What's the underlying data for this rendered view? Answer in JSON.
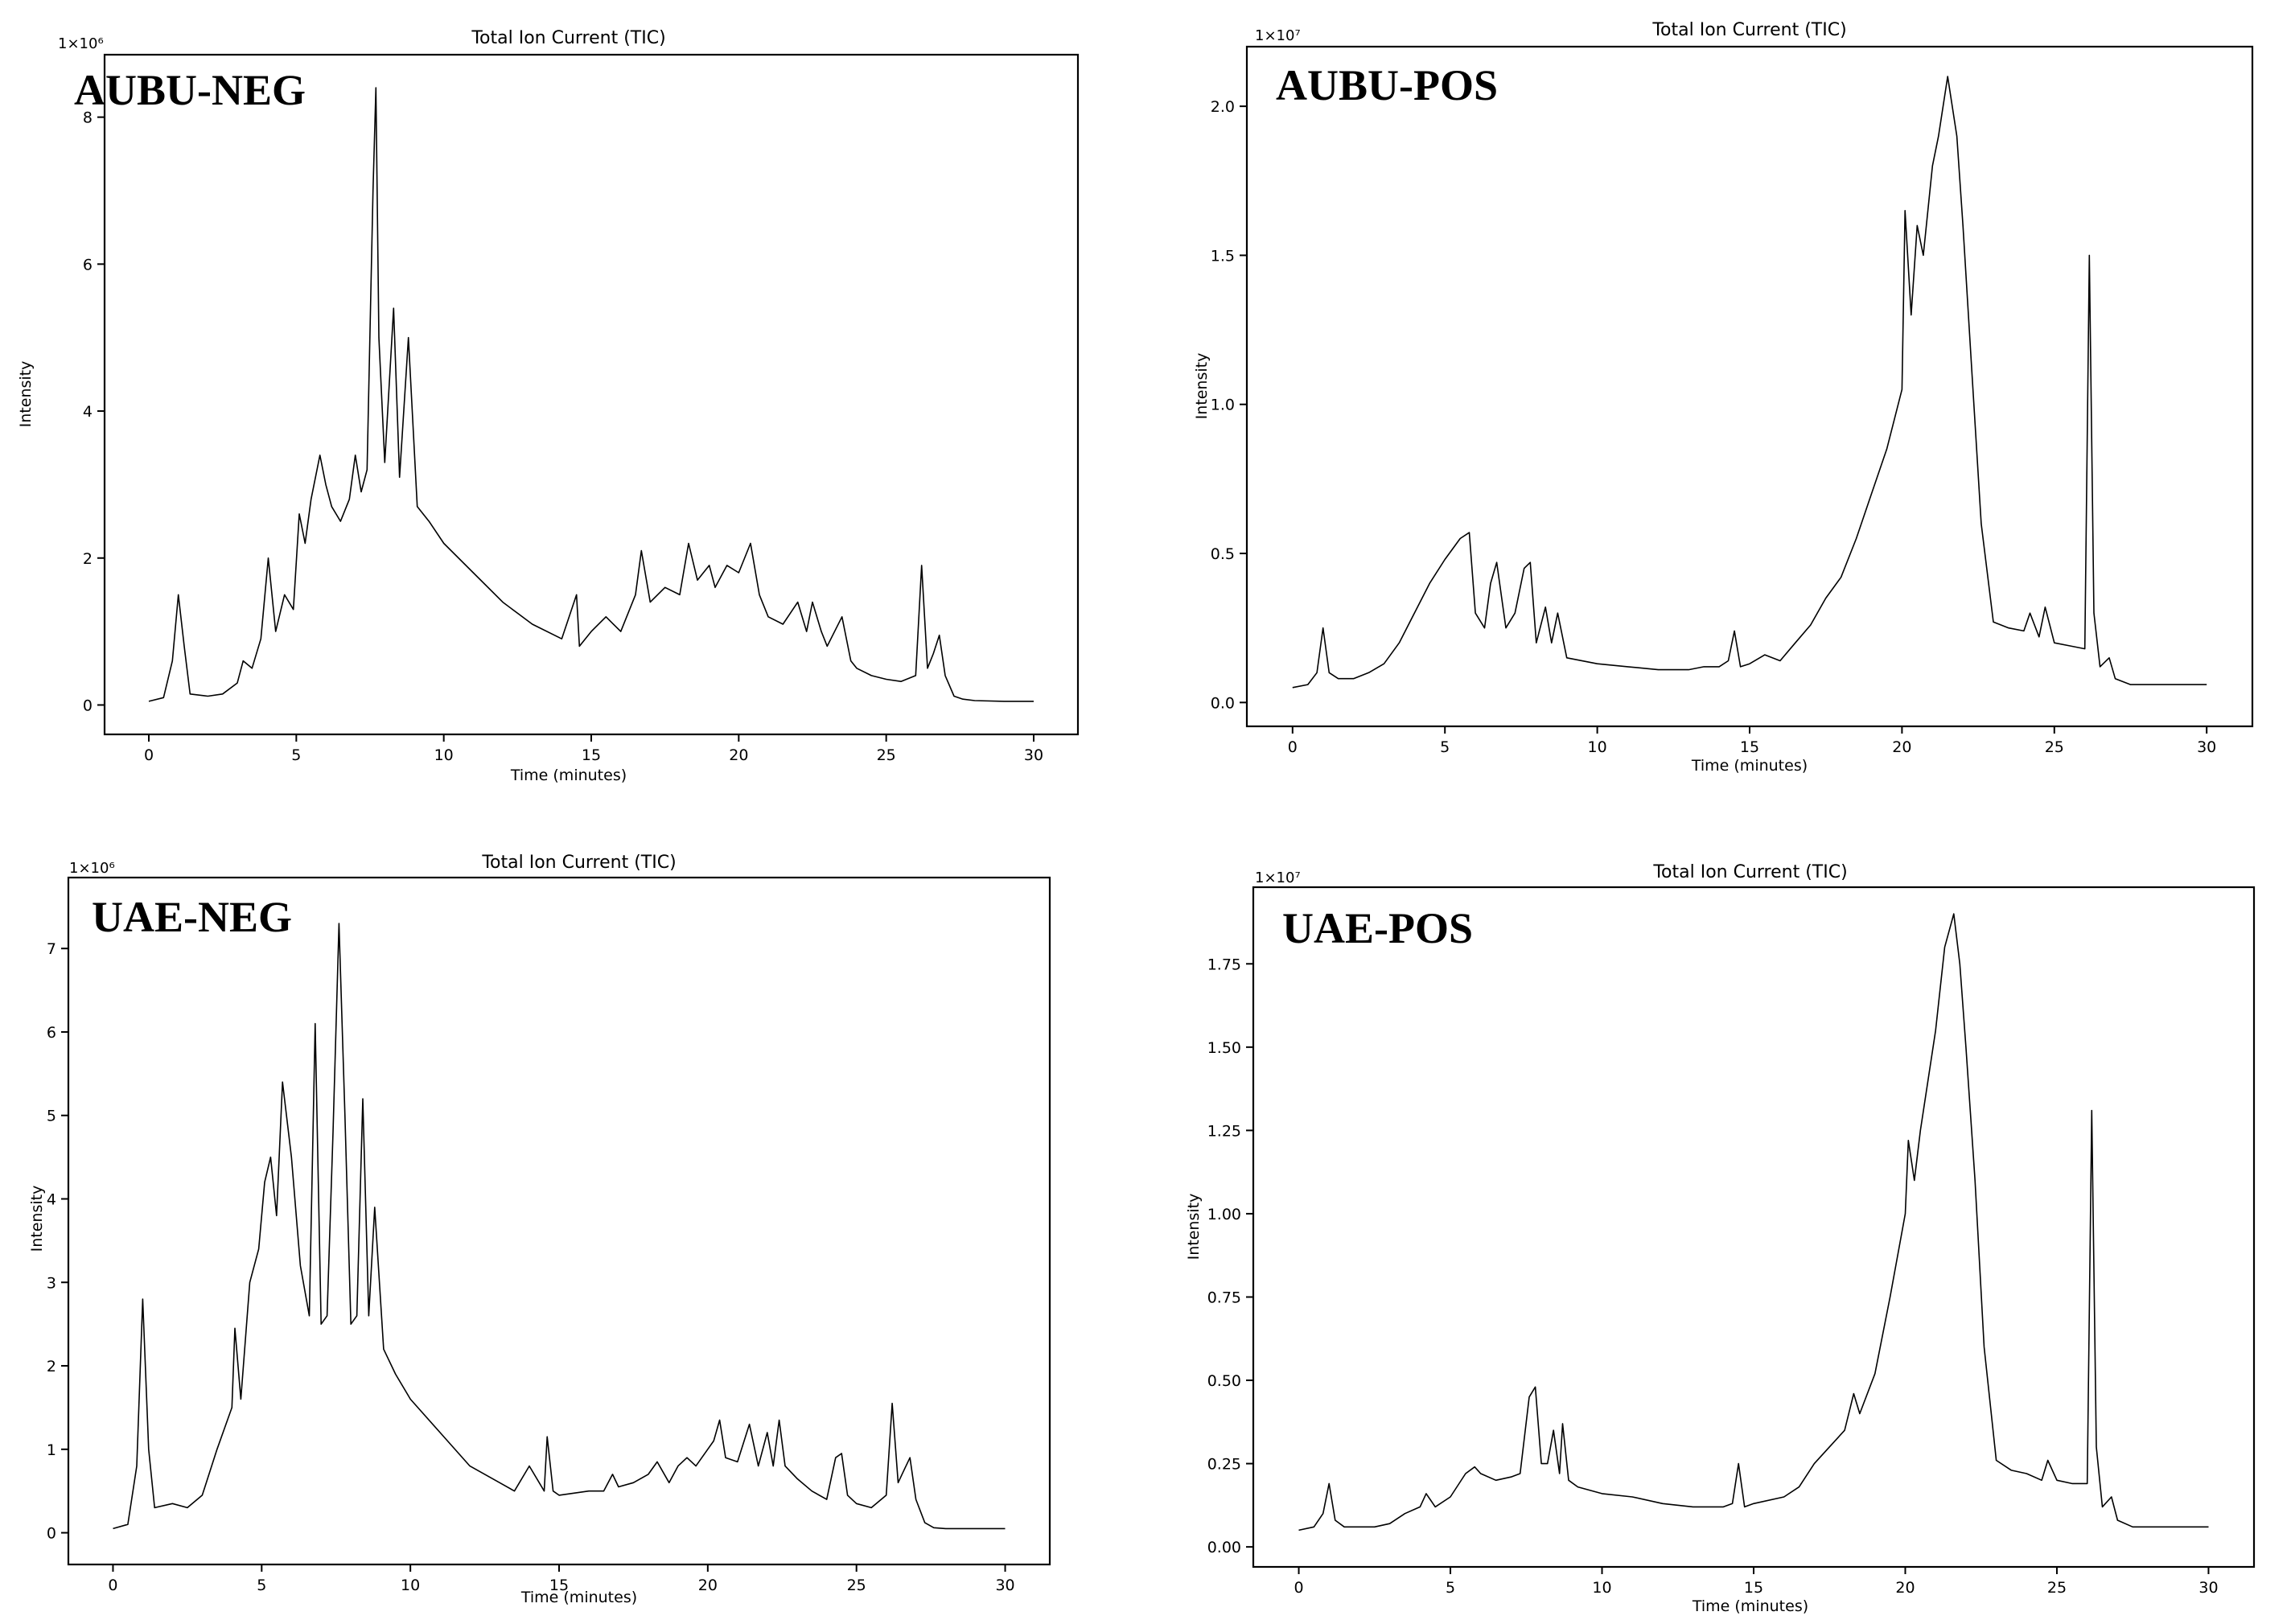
{
  "chart_data": [
    {
      "type": "line",
      "panel_label": "AUBU-NEG",
      "title": "Total Ion Current (TIC)",
      "xlabel": "Time (minutes)",
      "ylabel": "Intensity",
      "y_multiplier": "1×10⁶",
      "xlim": [
        -1.5,
        31.5
      ],
      "ylim": [
        -0.4,
        8.85
      ],
      "x_ticks": [
        0,
        5,
        10,
        15,
        20,
        25,
        30
      ],
      "y_ticks": [
        0,
        2,
        4,
        6,
        8
      ],
      "grid": false,
      "series": [
        {
          "x": [
            0,
            0.5,
            0.8,
            1.0,
            1.2,
            1.4,
            2,
            2.5,
            3,
            3.2,
            3.5,
            3.8,
            4.05,
            4.3,
            4.6,
            4.9,
            5.1,
            5.3,
            5.5,
            5.8,
            6.0,
            6.2,
            6.5,
            6.8,
            7.0,
            7.2,
            7.4,
            7.6,
            7.7,
            7.8,
            8.0,
            8.3,
            8.5,
            8.8,
            9.1,
            9.5,
            10,
            11,
            12,
            13,
            14,
            14.5,
            14.6,
            15,
            15.5,
            16,
            16.5,
            16.7,
            17,
            17.5,
            18,
            18.3,
            18.6,
            19,
            19.2,
            19.6,
            20,
            20.4,
            20.7,
            21,
            21.5,
            22,
            22.3,
            22.5,
            22.8,
            23,
            23.5,
            23.8,
            24,
            24.5,
            25,
            25.5,
            26,
            26.2,
            26.4,
            26.6,
            26.8,
            27,
            27.3,
            27.6,
            28,
            29,
            30
          ],
          "y": [
            0.05,
            0.1,
            0.6,
            1.5,
            0.8,
            0.15,
            0.12,
            0.15,
            0.3,
            0.6,
            0.5,
            0.9,
            2.0,
            1.0,
            1.5,
            1.3,
            2.6,
            2.2,
            2.8,
            3.4,
            3.0,
            2.7,
            2.5,
            2.8,
            3.4,
            2.9,
            3.2,
            7.0,
            8.4,
            5.0,
            3.3,
            5.4,
            3.1,
            5.0,
            2.7,
            2.5,
            2.2,
            1.8,
            1.4,
            1.1,
            0.9,
            1.5,
            0.8,
            1.0,
            1.2,
            1.0,
            1.5,
            2.1,
            1.4,
            1.6,
            1.5,
            2.2,
            1.7,
            1.9,
            1.6,
            1.9,
            1.8,
            2.2,
            1.5,
            1.2,
            1.1,
            1.4,
            1.0,
            1.4,
            1.0,
            0.8,
            1.2,
            0.6,
            0.5,
            0.4,
            0.35,
            0.32,
            0.4,
            1.9,
            0.5,
            0.7,
            0.95,
            0.4,
            0.12,
            0.08,
            0.06,
            0.05,
            0.05
          ]
        }
      ]
    },
    {
      "type": "line",
      "panel_label": "AUBU-POS",
      "title": "Total Ion Current (TIC)",
      "xlabel": "Time (minutes)",
      "ylabel": "Intensity",
      "y_multiplier": "1×10⁷",
      "xlim": [
        -1.5,
        31.5
      ],
      "ylim": [
        -0.08,
        2.2
      ],
      "x_ticks": [
        0,
        5,
        10,
        15,
        20,
        25,
        30
      ],
      "y_ticks": [
        0.0,
        0.5,
        1.0,
        1.5,
        2.0
      ],
      "y_tick_labels": [
        "0.0",
        "0.5",
        "1.0",
        "1.5",
        "2.0"
      ],
      "grid": false,
      "series": [
        {
          "x": [
            0,
            0.5,
            0.8,
            1.0,
            1.2,
            1.5,
            2,
            2.5,
            3,
            3.5,
            4,
            4.5,
            5,
            5.5,
            5.8,
            6.0,
            6.3,
            6.5,
            6.7,
            7.0,
            7.3,
            7.6,
            7.8,
            8.0,
            8.3,
            8.5,
            8.7,
            9,
            10,
            11,
            12,
            13,
            13.5,
            14,
            14.3,
            14.5,
            14.7,
            15,
            15.5,
            16,
            16.5,
            17,
            17.5,
            18,
            18.5,
            19,
            19.5,
            20,
            20.1,
            20.3,
            20.5,
            20.7,
            21,
            21.2,
            21.5,
            21.8,
            22,
            22.3,
            22.6,
            23,
            23.5,
            24,
            24.2,
            24.5,
            24.7,
            25,
            25.5,
            26,
            26.15,
            26.3,
            26.5,
            26.8,
            27,
            27.5,
            28,
            29,
            30
          ],
          "y": [
            0.05,
            0.06,
            0.1,
            0.25,
            0.1,
            0.08,
            0.08,
            0.1,
            0.13,
            0.2,
            0.3,
            0.4,
            0.48,
            0.55,
            0.57,
            0.3,
            0.25,
            0.4,
            0.47,
            0.25,
            0.3,
            0.45,
            0.47,
            0.2,
            0.32,
            0.2,
            0.3,
            0.15,
            0.13,
            0.12,
            0.11,
            0.11,
            0.12,
            0.12,
            0.14,
            0.24,
            0.12,
            0.13,
            0.16,
            0.14,
            0.2,
            0.26,
            0.35,
            0.42,
            0.55,
            0.7,
            0.85,
            1.05,
            1.65,
            1.3,
            1.6,
            1.5,
            1.8,
            1.9,
            2.1,
            1.9,
            1.6,
            1.1,
            0.6,
            0.27,
            0.25,
            0.24,
            0.3,
            0.22,
            0.32,
            0.2,
            0.19,
            0.18,
            1.5,
            0.3,
            0.12,
            0.15,
            0.08,
            0.06,
            0.06,
            0.06,
            0.06
          ]
        }
      ]
    },
    {
      "type": "line",
      "panel_label": "UAE-NEG",
      "title": "Total Ion Current (TIC)",
      "xlabel": "Time (minutes)",
      "ylabel": "Intensity",
      "y_multiplier": "1×10⁶",
      "xlim": [
        -1.5,
        31.5
      ],
      "ylim": [
        -0.38,
        7.85
      ],
      "x_ticks": [
        0,
        5,
        10,
        15,
        20,
        25,
        30
      ],
      "y_ticks": [
        0,
        1,
        2,
        3,
        4,
        5,
        6,
        7
      ],
      "grid": false,
      "series": [
        {
          "x": [
            0,
            0.5,
            0.8,
            1.0,
            1.2,
            1.4,
            2,
            2.5,
            3,
            3.5,
            4,
            4.1,
            4.3,
            4.6,
            4.9,
            5.1,
            5.3,
            5.5,
            5.7,
            6.0,
            6.3,
            6.6,
            6.8,
            7.0,
            7.2,
            7.4,
            7.6,
            7.8,
            8.0,
            8.2,
            8.4,
            8.6,
            8.8,
            9.1,
            9.5,
            10,
            11,
            12,
            13,
            13.5,
            14,
            14.5,
            14.6,
            14.8,
            15,
            16,
            16.5,
            16.8,
            17,
            17.5,
            18,
            18.3,
            18.7,
            19,
            19.3,
            19.6,
            20,
            20.2,
            20.4,
            20.6,
            21,
            21.4,
            21.7,
            22,
            22.2,
            22.4,
            22.6,
            23,
            23.5,
            24,
            24.3,
            24.5,
            24.7,
            25,
            25.5,
            26,
            26.2,
            26.4,
            26.6,
            26.8,
            27,
            27.3,
            27.6,
            28,
            29,
            30
          ],
          "y": [
            0.05,
            0.1,
            0.8,
            2.8,
            1.0,
            0.3,
            0.35,
            0.3,
            0.45,
            1.0,
            1.5,
            2.45,
            1.6,
            3.0,
            3.4,
            4.2,
            4.5,
            3.8,
            5.4,
            4.5,
            3.2,
            2.6,
            6.1,
            2.5,
            2.6,
            4.8,
            7.3,
            5.0,
            2.5,
            2.6,
            5.2,
            2.6,
            3.9,
            2.2,
            1.9,
            1.6,
            1.2,
            0.8,
            0.6,
            0.5,
            0.8,
            0.5,
            1.15,
            0.5,
            0.45,
            0.5,
            0.5,
            0.7,
            0.55,
            0.6,
            0.7,
            0.85,
            0.6,
            0.8,
            0.9,
            0.8,
            1.0,
            1.1,
            1.35,
            0.9,
            0.85,
            1.3,
            0.8,
            1.2,
            0.8,
            1.35,
            0.8,
            0.65,
            0.5,
            0.4,
            0.9,
            0.95,
            0.45,
            0.35,
            0.3,
            0.45,
            1.55,
            0.6,
            0.75,
            0.9,
            0.4,
            0.12,
            0.06,
            0.05,
            0.05,
            0.05
          ]
        }
      ]
    },
    {
      "type": "line",
      "panel_label": "UAE-POS",
      "title": "Total Ion Current (TIC)",
      "xlabel": "Time (minutes)",
      "ylabel": "Intensity",
      "y_multiplier": "1×10⁷",
      "xlim": [
        -1.5,
        31.5
      ],
      "ylim": [
        -0.06,
        1.98
      ],
      "x_ticks": [
        0,
        5,
        10,
        15,
        20,
        25,
        30
      ],
      "y_ticks": [
        0.0,
        0.25,
        0.5,
        0.75,
        1.0,
        1.25,
        1.5,
        1.75
      ],
      "y_tick_labels": [
        "0.00",
        "0.25",
        "0.50",
        "0.75",
        "1.00",
        "1.25",
        "1.50",
        "1.75"
      ],
      "grid": false,
      "series": [
        {
          "x": [
            0,
            0.5,
            0.8,
            1.0,
            1.2,
            1.5,
            2,
            2.5,
            3,
            3.5,
            4,
            4.2,
            4.5,
            5,
            5.5,
            5.8,
            6.0,
            6.5,
            7,
            7.3,
            7.6,
            7.8,
            8.0,
            8.2,
            8.4,
            8.6,
            8.7,
            8.9,
            9.2,
            10,
            11,
            12,
            13,
            14,
            14.3,
            14.5,
            14.7,
            15,
            16,
            16.5,
            17,
            17.5,
            18,
            18.3,
            18.5,
            19,
            19.5,
            20,
            20.1,
            20.3,
            20.5,
            21,
            21.3,
            21.6,
            21.8,
            22,
            22.3,
            22.6,
            23,
            23.5,
            24,
            24.5,
            24.7,
            25,
            25.5,
            26,
            26.15,
            26.3,
            26.5,
            26.8,
            27,
            27.5,
            28,
            29,
            30
          ],
          "y": [
            0.05,
            0.06,
            0.1,
            0.19,
            0.08,
            0.06,
            0.06,
            0.06,
            0.07,
            0.1,
            0.12,
            0.16,
            0.12,
            0.15,
            0.22,
            0.24,
            0.22,
            0.2,
            0.21,
            0.22,
            0.45,
            0.48,
            0.25,
            0.25,
            0.35,
            0.22,
            0.37,
            0.2,
            0.18,
            0.16,
            0.15,
            0.13,
            0.12,
            0.12,
            0.13,
            0.25,
            0.12,
            0.13,
            0.15,
            0.18,
            0.25,
            0.3,
            0.35,
            0.46,
            0.4,
            0.52,
            0.75,
            1.0,
            1.22,
            1.1,
            1.25,
            1.55,
            1.8,
            1.9,
            1.75,
            1.5,
            1.1,
            0.6,
            0.26,
            0.23,
            0.22,
            0.2,
            0.26,
            0.2,
            0.19,
            0.19,
            1.31,
            0.3,
            0.12,
            0.15,
            0.08,
            0.06,
            0.06,
            0.06,
            0.06
          ]
        }
      ]
    }
  ]
}
